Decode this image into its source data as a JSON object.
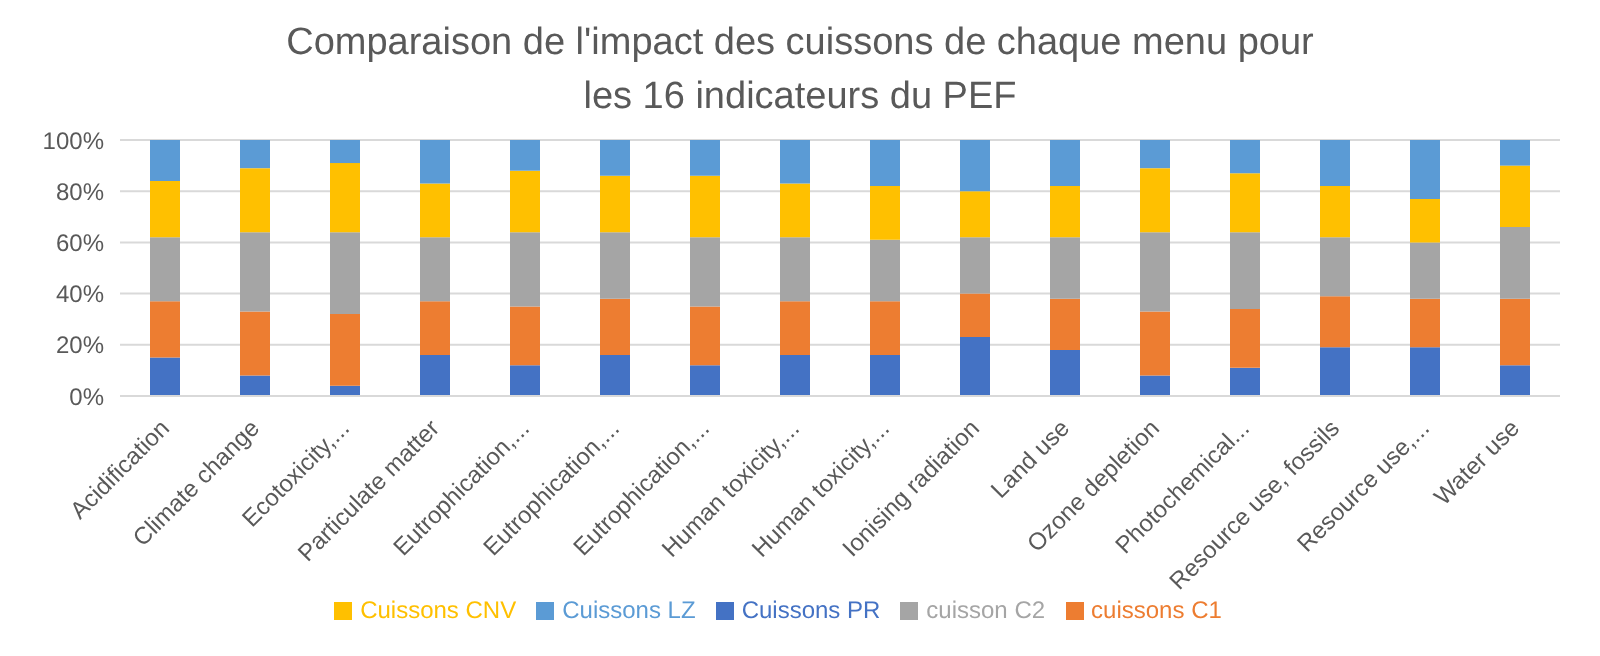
{
  "chart_data": {
    "type": "bar",
    "stacked": true,
    "title": "Comparaison de l'impact des cuissons de chaque menu pour les 16 indicateurs du PEF",
    "categories": [
      "Acidification",
      "Climate change",
      "Ecotoxicity,...",
      "Particulate matter",
      "Eutrophication,...",
      "Eutrophication,...",
      "Eutrophication,...",
      "Human toxicity,...",
      "Human toxicity,...",
      "Ionising radiation",
      "Land use",
      "Ozone depletion",
      "Photochemical...",
      "Resource use, fossils",
      "Resource use,...",
      "Water use"
    ],
    "series": [
      {
        "name": "Cuissons PR",
        "color": "#4472c4",
        "values": [
          15,
          8,
          4,
          16,
          12,
          16,
          12,
          16,
          16,
          23,
          18,
          8,
          11,
          19,
          19,
          12
        ]
      },
      {
        "name": "cuissons C1",
        "color": "#ed7d31",
        "values": [
          22,
          25,
          28,
          21,
          23,
          22,
          23,
          21,
          21,
          17,
          20,
          25,
          23,
          20,
          19,
          26
        ]
      },
      {
        "name": "cuisson C2",
        "color": "#a5a5a5",
        "values": [
          25,
          31,
          32,
          25,
          29,
          26,
          27,
          25,
          24,
          22,
          24,
          31,
          30,
          23,
          22,
          28
        ]
      },
      {
        "name": "Cuissons CNV",
        "color": "#ffc000",
        "values": [
          22,
          25,
          27,
          21,
          24,
          22,
          24,
          21,
          21,
          18,
          20,
          25,
          23,
          20,
          17,
          24
        ]
      },
      {
        "name": "Cuissons LZ",
        "color": "#5b9bd5",
        "values": [
          16,
          11,
          9,
          17,
          12,
          14,
          14,
          17,
          18,
          20,
          18,
          11,
          13,
          18,
          23,
          10
        ]
      }
    ],
    "ylim": [
      0,
      100
    ],
    "yticks": [
      {
        "value": 0,
        "label": "0%"
      },
      {
        "value": 20,
        "label": "20%"
      },
      {
        "value": 40,
        "label": "40%"
      },
      {
        "value": 60,
        "label": "60%"
      },
      {
        "value": 80,
        "label": "80%"
      },
      {
        "value": 100,
        "label": "100%"
      }
    ],
    "grid": "y",
    "legend": "bottom"
  }
}
